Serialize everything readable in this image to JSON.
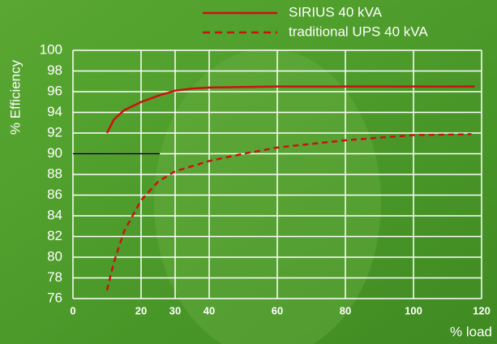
{
  "chart_data": {
    "type": "line",
    "ylabel": "% Efficiency",
    "xlabel": "% load",
    "xlim": [
      0,
      120
    ],
    "xticks": [
      0,
      20,
      30,
      40,
      60,
      80,
      100,
      120
    ],
    "ylim": [
      76,
      100
    ],
    "yticks": [
      76,
      78,
      80,
      82,
      84,
      86,
      88,
      90,
      92,
      94,
      96,
      98,
      100
    ],
    "grid": true,
    "legend": "top",
    "series": [
      {
        "name": "SIRIUS 40 kVA",
        "color": "#cc1111",
        "dash": false,
        "x": [
          10,
          12,
          15,
          20,
          25,
          30,
          35,
          40,
          60,
          80,
          100,
          118
        ],
        "values": [
          92,
          93.3,
          94.2,
          95.0,
          95.6,
          96.1,
          96.3,
          96.4,
          96.5,
          96.5,
          96.5,
          96.5
        ]
      },
      {
        "name": "traditional UPS 40 kVA",
        "color": "#cc1111",
        "dash": true,
        "x": [
          10,
          12,
          15,
          20,
          25,
          30,
          40,
          50,
          60,
          80,
          100,
          117
        ],
        "values": [
          76.8,
          79.5,
          82.5,
          85.5,
          87.3,
          88.3,
          89.3,
          90.0,
          90.6,
          91.3,
          91.8,
          91.9
        ]
      }
    ],
    "hline": {
      "value": 90,
      "x": [
        0,
        25.5
      ],
      "color": "#000000"
    }
  }
}
